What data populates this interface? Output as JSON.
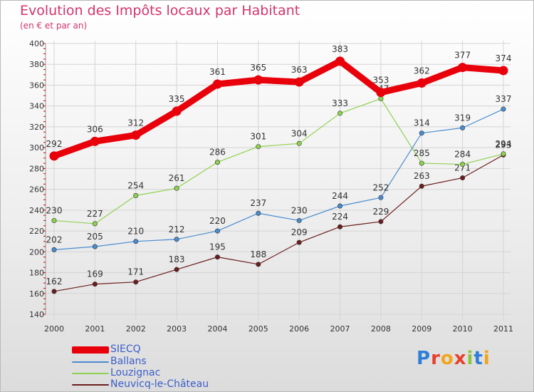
{
  "header": {
    "title": "Evolution des Impôts locaux par Habitant",
    "subtitle": "(en € et par an)"
  },
  "logo": {
    "text": "Proxiti"
  },
  "chart_data": {
    "type": "line",
    "title": "Evolution des Impôts locaux par Habitant",
    "subtitle": "(en € et par an)",
    "xlabel": "",
    "ylabel": "",
    "categories": [
      "2000",
      "2001",
      "2002",
      "2003",
      "2004",
      "2005",
      "2006",
      "2007",
      "2008",
      "2009",
      "2010",
      "2011"
    ],
    "ylim": [
      140,
      400
    ],
    "yticks": [
      140,
      160,
      180,
      200,
      220,
      240,
      260,
      280,
      300,
      320,
      340,
      360,
      380,
      400
    ],
    "grid": true,
    "legend_position": "bottom-left",
    "series": [
      {
        "name": "SIECQ",
        "color": "#e8000b",
        "values": [
          292,
          306,
          312,
          335,
          361,
          365,
          363,
          383,
          353,
          362,
          377,
          374
        ]
      },
      {
        "name": "Ballans",
        "color": "#4a8ccf",
        "values": [
          202,
          205,
          210,
          212,
          220,
          237,
          230,
          244,
          252,
          314,
          319,
          337
        ]
      },
      {
        "name": "Louzignac",
        "color": "#8fd14f",
        "values": [
          230,
          227,
          254,
          261,
          286,
          301,
          304,
          333,
          347,
          285,
          284,
          294
        ]
      },
      {
        "name": "Neuvicq-le-Château",
        "color": "#6b1e1e",
        "values": [
          162,
          169,
          171,
          183,
          195,
          188,
          209,
          224,
          229,
          263,
          271,
          293
        ]
      }
    ]
  }
}
